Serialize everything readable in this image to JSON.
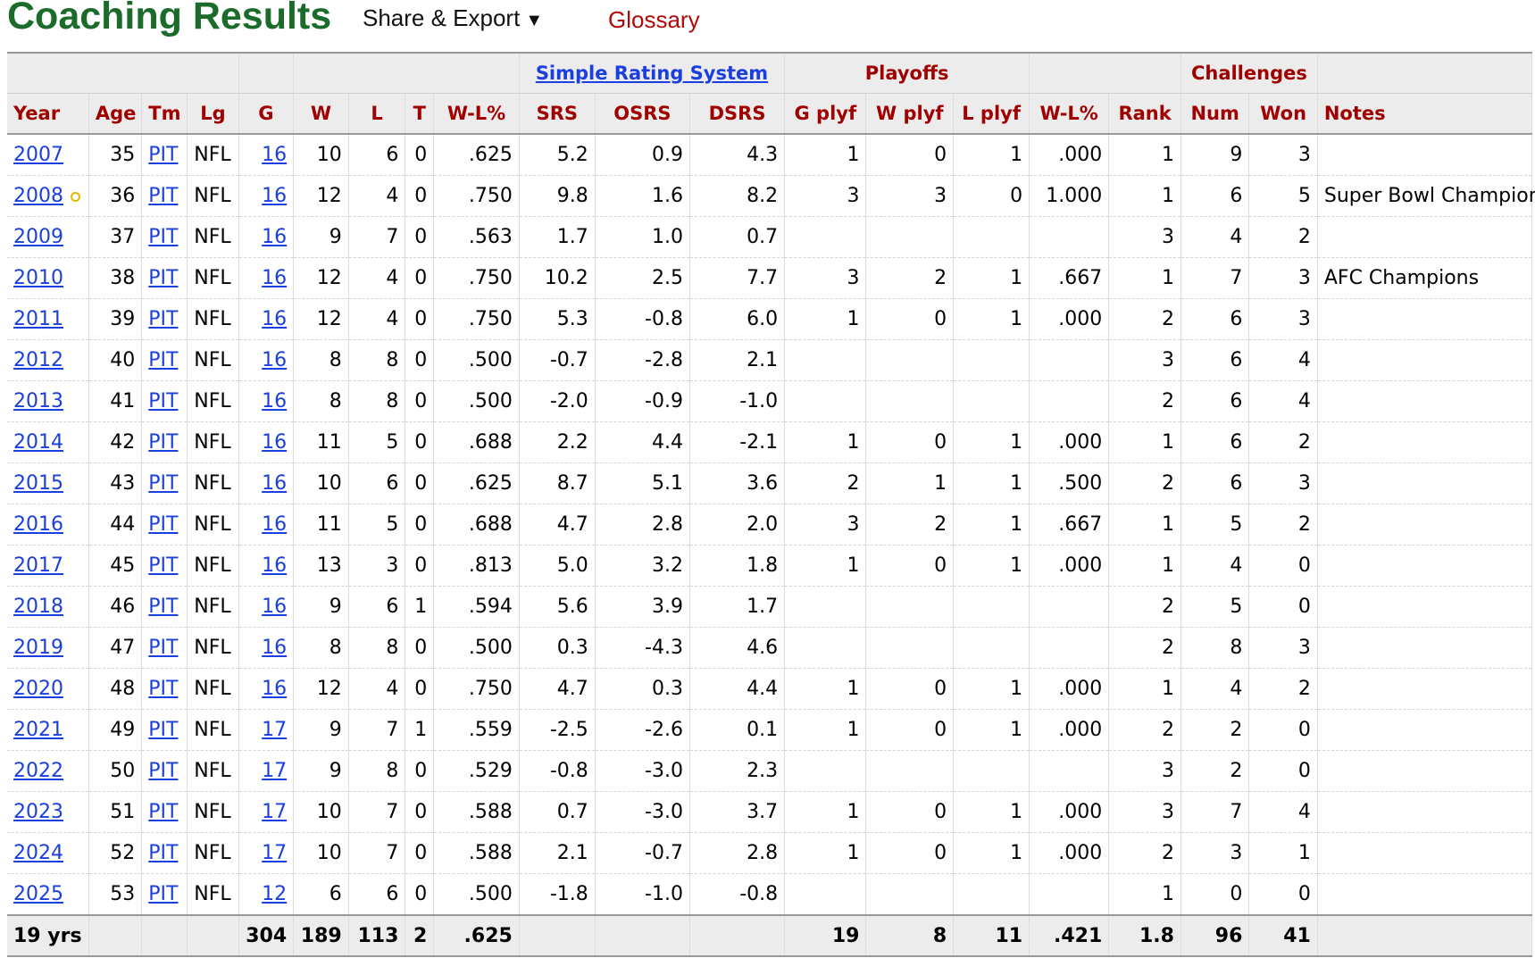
{
  "header": {
    "title": "Coaching Results",
    "share_label": "Share & Export",
    "share_caret": "▼",
    "glossary_label": "Glossary"
  },
  "colors": {
    "title": "#1b6b2a",
    "header_text": "#a00000",
    "link": "#1a3ee0",
    "header_bg": "#ececec"
  },
  "over_header": {
    "srs": "Simple Rating System",
    "playoffs": "Playoffs",
    "challenges": "Challenges"
  },
  "columns": [
    "Year",
    "Age",
    "Tm",
    "Lg",
    "G",
    "W",
    "L",
    "T",
    "W-L%",
    "SRS",
    "OSRS",
    "DSRS",
    "G plyf",
    "W plyf",
    "L plyf",
    "W-L%",
    "Rank",
    "Num",
    "Won",
    "Notes"
  ],
  "rows": [
    [
      "2007",
      "35",
      "PIT",
      "NFL",
      "16",
      "10",
      "6",
      "0",
      ".625",
      "5.2",
      "0.9",
      "4.3",
      "1",
      "0",
      "1",
      ".000",
      "1",
      "9",
      "3",
      ""
    ],
    [
      "2008",
      "36",
      "PIT",
      "NFL",
      "16",
      "12",
      "4",
      "0",
      ".750",
      "9.8",
      "1.6",
      "8.2",
      "3",
      "3",
      "0",
      "1.000",
      "1",
      "6",
      "5",
      "Super Bowl Champions"
    ],
    [
      "2009",
      "37",
      "PIT",
      "NFL",
      "16",
      "9",
      "7",
      "0",
      ".563",
      "1.7",
      "1.0",
      "0.7",
      "",
      "",
      "",
      "",
      "3",
      "4",
      "2",
      ""
    ],
    [
      "2010",
      "38",
      "PIT",
      "NFL",
      "16",
      "12",
      "4",
      "0",
      ".750",
      "10.2",
      "2.5",
      "7.7",
      "3",
      "2",
      "1",
      ".667",
      "1",
      "7",
      "3",
      "AFC Champions"
    ],
    [
      "2011",
      "39",
      "PIT",
      "NFL",
      "16",
      "12",
      "4",
      "0",
      ".750",
      "5.3",
      "-0.8",
      "6.0",
      "1",
      "0",
      "1",
      ".000",
      "2",
      "6",
      "3",
      ""
    ],
    [
      "2012",
      "40",
      "PIT",
      "NFL",
      "16",
      "8",
      "8",
      "0",
      ".500",
      "-0.7",
      "-2.8",
      "2.1",
      "",
      "",
      "",
      "",
      "3",
      "6",
      "4",
      ""
    ],
    [
      "2013",
      "41",
      "PIT",
      "NFL",
      "16",
      "8",
      "8",
      "0",
      ".500",
      "-2.0",
      "-0.9",
      "-1.0",
      "",
      "",
      "",
      "",
      "2",
      "6",
      "4",
      ""
    ],
    [
      "2014",
      "42",
      "PIT",
      "NFL",
      "16",
      "11",
      "5",
      "0",
      ".688",
      "2.2",
      "4.4",
      "-2.1",
      "1",
      "0",
      "1",
      ".000",
      "1",
      "6",
      "2",
      ""
    ],
    [
      "2015",
      "43",
      "PIT",
      "NFL",
      "16",
      "10",
      "6",
      "0",
      ".625",
      "8.7",
      "5.1",
      "3.6",
      "2",
      "1",
      "1",
      ".500",
      "2",
      "6",
      "3",
      ""
    ],
    [
      "2016",
      "44",
      "PIT",
      "NFL",
      "16",
      "11",
      "5",
      "0",
      ".688",
      "4.7",
      "2.8",
      "2.0",
      "3",
      "2",
      "1",
      ".667",
      "1",
      "5",
      "2",
      ""
    ],
    [
      "2017",
      "45",
      "PIT",
      "NFL",
      "16",
      "13",
      "3",
      "0",
      ".813",
      "5.0",
      "3.2",
      "1.8",
      "1",
      "0",
      "1",
      ".000",
      "1",
      "4",
      "0",
      ""
    ],
    [
      "2018",
      "46",
      "PIT",
      "NFL",
      "16",
      "9",
      "6",
      "1",
      ".594",
      "5.6",
      "3.9",
      "1.7",
      "",
      "",
      "",
      "",
      "2",
      "5",
      "0",
      ""
    ],
    [
      "2019",
      "47",
      "PIT",
      "NFL",
      "16",
      "8",
      "8",
      "0",
      ".500",
      "0.3",
      "-4.3",
      "4.6",
      "",
      "",
      "",
      "",
      "2",
      "8",
      "3",
      ""
    ],
    [
      "2020",
      "48",
      "PIT",
      "NFL",
      "16",
      "12",
      "4",
      "0",
      ".750",
      "4.7",
      "0.3",
      "4.4",
      "1",
      "0",
      "1",
      ".000",
      "1",
      "4",
      "2",
      ""
    ],
    [
      "2021",
      "49",
      "PIT",
      "NFL",
      "17",
      "9",
      "7",
      "1",
      ".559",
      "-2.5",
      "-2.6",
      "0.1",
      "1",
      "0",
      "1",
      ".000",
      "2",
      "2",
      "0",
      ""
    ],
    [
      "2022",
      "50",
      "PIT",
      "NFL",
      "17",
      "9",
      "8",
      "0",
      ".529",
      "-0.8",
      "-3.0",
      "2.3",
      "",
      "",
      "",
      "",
      "3",
      "2",
      "0",
      ""
    ],
    [
      "2023",
      "51",
      "PIT",
      "NFL",
      "17",
      "10",
      "7",
      "0",
      ".588",
      "0.7",
      "-3.0",
      "3.7",
      "1",
      "0",
      "1",
      ".000",
      "3",
      "7",
      "4",
      ""
    ],
    [
      "2024",
      "52",
      "PIT",
      "NFL",
      "17",
      "10",
      "7",
      "0",
      ".588",
      "2.1",
      "-0.7",
      "2.8",
      "1",
      "0",
      "1",
      ".000",
      "2",
      "3",
      "1",
      ""
    ],
    [
      "2025",
      "53",
      "PIT",
      "NFL",
      "12",
      "6",
      "6",
      "0",
      ".500",
      "-1.8",
      "-1.0",
      "-0.8",
      "",
      "",
      "",
      "",
      "1",
      "0",
      "0",
      ""
    ]
  ],
  "champion_marker_row": "2008",
  "totals": [
    "19 yrs",
    "",
    "",
    "",
    "304",
    "189",
    "113",
    "2",
    ".625",
    "",
    "",
    "",
    "19",
    "8",
    "11",
    ".421",
    "1.8",
    "96",
    "41",
    ""
  ]
}
